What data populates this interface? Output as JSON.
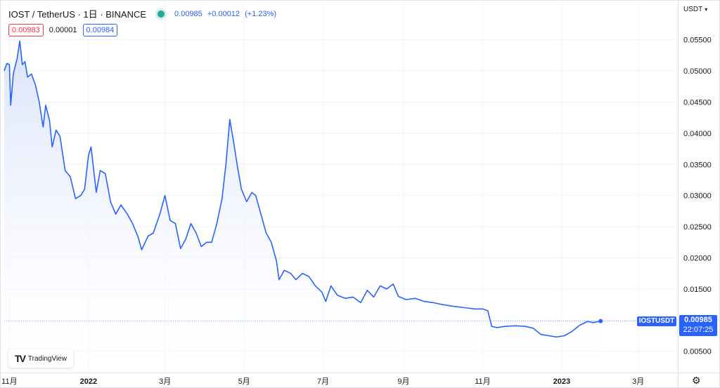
{
  "header": {
    "symbol_title": "IOST / TetherUS · 1日 · BINANCE",
    "last_price": "0.00985",
    "change": "+0.00012",
    "change_pct": "(+1.23%)"
  },
  "quotes": {
    "bid": "0.00983",
    "spread": "0.00001",
    "ask": "0.00984"
  },
  "currency_label": "USDT",
  "price_tag": {
    "symbol": "IOSTUSDT",
    "value": "0.00985",
    "countdown": "22:07:25"
  },
  "logo_text": "TradingView",
  "colors": {
    "line": "#2962ff",
    "fill_top": "#d6e0fb",
    "fill_bottom": "#ffffff",
    "bid": "#f23645",
    "live": "#26a69a"
  },
  "icons": {
    "live": "live-status-dot",
    "settings": "gear-icon",
    "currency_menu": "chevron-down-icon"
  },
  "chart_data": {
    "type": "area",
    "title": "IOST / TetherUS · 1日 · BINANCE",
    "xlabel": "",
    "ylabel": "",
    "ylim": [
      0.0017,
      0.058
    ],
    "x_range": [
      "2021-10-28",
      "2023-03-31"
    ],
    "y_ticks": [
      "0.05500",
      "0.05000",
      "0.04500",
      "0.04000",
      "0.03500",
      "0.03000",
      "0.02500",
      "0.02000",
      "0.01500",
      "0.01000",
      "0.00500"
    ],
    "y_tick_values": [
      0.055,
      0.05,
      0.045,
      0.04,
      0.035,
      0.03,
      0.025,
      0.02,
      0.015,
      0.01,
      0.005
    ],
    "x_ticks": [
      {
        "label": "11月",
        "date": "2021-11-01",
        "bold": false
      },
      {
        "label": "2022",
        "date": "2022-01-01",
        "bold": true
      },
      {
        "label": "3月",
        "date": "2022-03-01",
        "bold": false
      },
      {
        "label": "5月",
        "date": "2022-05-01",
        "bold": false
      },
      {
        "label": "7月",
        "date": "2022-07-01",
        "bold": false
      },
      {
        "label": "9月",
        "date": "2022-09-01",
        "bold": false
      },
      {
        "label": "11月",
        "date": "2022-11-01",
        "bold": false
      },
      {
        "label": "2023",
        "date": "2023-01-01",
        "bold": true
      },
      {
        "label": "3月",
        "date": "2023-03-01",
        "bold": false
      }
    ],
    "grid": true,
    "last_value_line": 0.00985,
    "series": [
      {
        "points": [
          [
            "2021-10-28",
            0.05
          ],
          [
            "2021-10-30",
            0.0512
          ],
          [
            "2021-11-01",
            0.051
          ],
          [
            "2021-11-02",
            0.0445
          ],
          [
            "2021-11-04",
            0.0495
          ],
          [
            "2021-11-07",
            0.052
          ],
          [
            "2021-11-09",
            0.0548
          ],
          [
            "2021-11-11",
            0.051
          ],
          [
            "2021-11-13",
            0.0515
          ],
          [
            "2021-11-15",
            0.049
          ],
          [
            "2021-11-18",
            0.0495
          ],
          [
            "2021-11-21",
            0.0478
          ],
          [
            "2021-11-24",
            0.045
          ],
          [
            "2021-11-27",
            0.041
          ],
          [
            "2021-11-29",
            0.0445
          ],
          [
            "2021-12-02",
            0.042
          ],
          [
            "2021-12-04",
            0.0378
          ],
          [
            "2021-12-07",
            0.0405
          ],
          [
            "2021-12-10",
            0.0395
          ],
          [
            "2021-12-14",
            0.034
          ],
          [
            "2021-12-18",
            0.033
          ],
          [
            "2021-12-22",
            0.0295
          ],
          [
            "2021-12-26",
            0.03
          ],
          [
            "2021-12-29",
            0.031
          ],
          [
            "2022-01-01",
            0.0365
          ],
          [
            "2022-01-03",
            0.0378
          ],
          [
            "2022-01-07",
            0.0305
          ],
          [
            "2022-01-10",
            0.034
          ],
          [
            "2022-01-14",
            0.0335
          ],
          [
            "2022-01-18",
            0.029
          ],
          [
            "2022-01-22",
            0.027
          ],
          [
            "2022-01-26",
            0.0285
          ],
          [
            "2022-01-31",
            0.027
          ],
          [
            "2022-02-04",
            0.0255
          ],
          [
            "2022-02-08",
            0.0235
          ],
          [
            "2022-02-11",
            0.0213
          ],
          [
            "2022-02-16",
            0.0235
          ],
          [
            "2022-02-20",
            0.024
          ],
          [
            "2022-02-25",
            0.027
          ],
          [
            "2022-03-01",
            0.03
          ],
          [
            "2022-03-05",
            0.026
          ],
          [
            "2022-03-09",
            0.0255
          ],
          [
            "2022-03-13",
            0.0215
          ],
          [
            "2022-03-17",
            0.023
          ],
          [
            "2022-03-21",
            0.0255
          ],
          [
            "2022-03-25",
            0.024
          ],
          [
            "2022-03-29",
            0.0218
          ],
          [
            "2022-04-02",
            0.0225
          ],
          [
            "2022-04-06",
            0.0225
          ],
          [
            "2022-04-10",
            0.0255
          ],
          [
            "2022-04-14",
            0.0295
          ],
          [
            "2022-04-17",
            0.035
          ],
          [
            "2022-04-20",
            0.0422
          ],
          [
            "2022-04-23",
            0.0385
          ],
          [
            "2022-04-26",
            0.0345
          ],
          [
            "2022-04-29",
            0.031
          ],
          [
            "2022-05-03",
            0.029
          ],
          [
            "2022-05-07",
            0.0305
          ],
          [
            "2022-05-10",
            0.03
          ],
          [
            "2022-05-14",
            0.027
          ],
          [
            "2022-05-18",
            0.024
          ],
          [
            "2022-05-22",
            0.0225
          ],
          [
            "2022-05-26",
            0.0195
          ],
          [
            "2022-05-28",
            0.0165
          ],
          [
            "2022-06-01",
            0.018
          ],
          [
            "2022-06-06",
            0.0175
          ],
          [
            "2022-06-10",
            0.0165
          ],
          [
            "2022-06-15",
            0.0175
          ],
          [
            "2022-06-20",
            0.017
          ],
          [
            "2022-06-25",
            0.0155
          ],
          [
            "2022-06-30",
            0.0145
          ],
          [
            "2022-07-03",
            0.013
          ],
          [
            "2022-07-07",
            0.0155
          ],
          [
            "2022-07-12",
            0.014
          ],
          [
            "2022-07-18",
            0.0135
          ],
          [
            "2022-07-24",
            0.0137
          ],
          [
            "2022-07-30",
            0.0128
          ],
          [
            "2022-08-04",
            0.0148
          ],
          [
            "2022-08-09",
            0.0137
          ],
          [
            "2022-08-14",
            0.0155
          ],
          [
            "2022-08-19",
            0.015
          ],
          [
            "2022-08-24",
            0.0158
          ],
          [
            "2022-08-28",
            0.0138
          ],
          [
            "2022-09-03",
            0.0133
          ],
          [
            "2022-09-10",
            0.0135
          ],
          [
            "2022-09-17",
            0.013
          ],
          [
            "2022-09-24",
            0.0128
          ],
          [
            "2022-10-01",
            0.0125
          ],
          [
            "2022-10-10",
            0.0122
          ],
          [
            "2022-10-18",
            0.012
          ],
          [
            "2022-10-26",
            0.0118
          ],
          [
            "2022-11-01",
            0.0118
          ],
          [
            "2022-11-05",
            0.0115
          ],
          [
            "2022-11-08",
            0.009
          ],
          [
            "2022-11-12",
            0.0088
          ],
          [
            "2022-11-18",
            0.009
          ],
          [
            "2022-11-26",
            0.0091
          ],
          [
            "2022-12-04",
            0.009
          ],
          [
            "2022-12-10",
            0.0087
          ],
          [
            "2022-12-16",
            0.0077
          ],
          [
            "2022-12-22",
            0.0075
          ],
          [
            "2022-12-28",
            0.0073
          ],
          [
            "2023-01-03",
            0.0075
          ],
          [
            "2023-01-09",
            0.0082
          ],
          [
            "2023-01-15",
            0.0092
          ],
          [
            "2023-01-21",
            0.0098
          ],
          [
            "2023-01-25",
            0.0096
          ],
          [
            "2023-01-31",
            0.00985
          ]
        ]
      }
    ]
  }
}
